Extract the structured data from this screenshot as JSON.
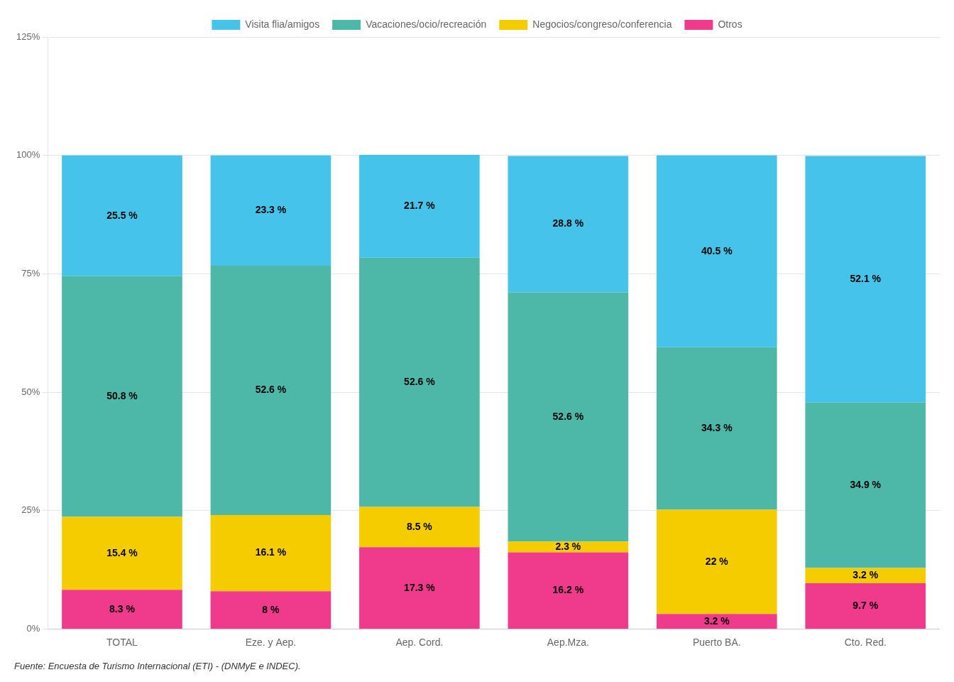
{
  "chart_data": {
    "type": "bar",
    "stacked": true,
    "categories": [
      "TOTAL",
      "Eze. y Aep.",
      "Aep. Cord.",
      "Aep.Mza.",
      "Puerto BA.",
      "Cto. Red."
    ],
    "series": [
      {
        "name": "Otros",
        "color": "#F03B8C",
        "values": [
          8.3,
          8.0,
          17.3,
          16.2,
          3.2,
          9.7
        ],
        "value_labels": [
          "8.3 %",
          "8 %",
          "17.3 %",
          "16.2 %",
          "3.2 %",
          "9.7 %"
        ]
      },
      {
        "name": "Negocios/congreso/conferencia",
        "color": "#F5CC00",
        "values": [
          15.4,
          16.1,
          8.5,
          2.3,
          22.0,
          3.2
        ],
        "value_labels": [
          "15.4 %",
          "16.1 %",
          "8.5 %",
          "2.3 %",
          "22 %",
          "3.2 %"
        ]
      },
      {
        "name": "Vacaciones/ocio/recreación",
        "color": "#4DB8A8",
        "values": [
          50.8,
          52.6,
          52.6,
          52.6,
          34.3,
          34.9
        ],
        "value_labels": [
          "50.8 %",
          "52.6 %",
          "52.6 %",
          "52.6 %",
          "34.3 %",
          "34.9 %"
        ]
      },
      {
        "name": "Visita flia/amigos",
        "color": "#45C3E8",
        "values": [
          25.5,
          23.3,
          21.7,
          28.8,
          40.5,
          52.1
        ],
        "value_labels": [
          "25.5 %",
          "23.3 %",
          "21.7 %",
          "28.8 %",
          "40.5 %",
          "52.1 %"
        ]
      }
    ],
    "ylim": [
      0,
      125
    ],
    "yticks": [
      {
        "value": 0,
        "label": "0%"
      },
      {
        "value": 25,
        "label": "25%"
      },
      {
        "value": 50,
        "label": "50%"
      },
      {
        "value": 75,
        "label": "75%"
      },
      {
        "value": 100,
        "label": "100%"
      },
      {
        "value": 125,
        "label": "125%"
      }
    ],
    "grid": true,
    "legend": "top",
    "data_labels": true,
    "annotations": [
      "Fuente: Encuesta de Turismo Internacional (ETI) - (DNMyE e INDEC)."
    ]
  }
}
